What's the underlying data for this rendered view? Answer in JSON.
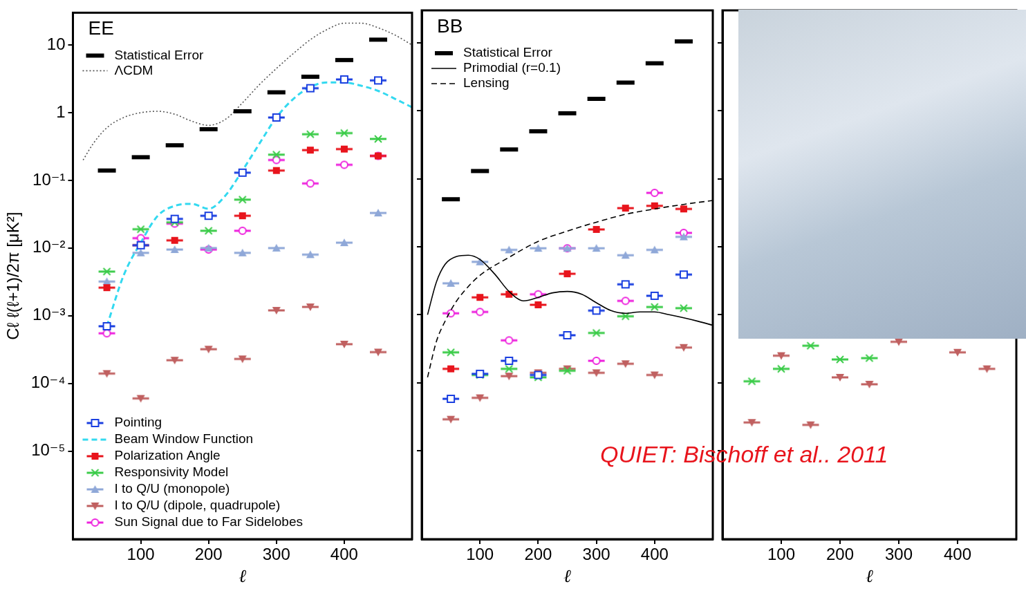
{
  "chart_data": [
    {
      "type": "scatter",
      "title": "EE",
      "x_label": "ℓ",
      "y_label": "Cℓ ℓ(ℓ+1)/2π [μK²]",
      "log": "y",
      "grid": false,
      "legend": "left",
      "xlim": [
        0,
        500
      ],
      "xticks": [
        100,
        200,
        300,
        400
      ],
      "ylim": [
        5e-07,
        30
      ],
      "yticks": [
        {
          "value": 1e-05,
          "label": "10⁻⁵"
        },
        {
          "value": 0.0001,
          "label": "10⁻⁴"
        },
        {
          "value": 0.001,
          "label": "10⁻³"
        },
        {
          "value": 0.01,
          "label": "10⁻²"
        },
        {
          "value": 0.1,
          "label": "10⁻¹"
        },
        1,
        10
      ],
      "series": [
        {
          "name": "Statistical Error",
          "type": "scatter",
          "marker": "bar",
          "color": "#000000",
          "x": [
            50,
            100,
            150,
            200,
            250,
            300,
            350,
            400,
            450
          ],
          "values": [
            0.14,
            0.22,
            0.33,
            0.57,
            1.05,
            2.0,
            3.4,
            6.0,
            12
          ]
        },
        {
          "name": "ΛCDM",
          "type": "line",
          "line_style": "dotted",
          "color": "#555555",
          "x": [
            15,
            30,
            50,
            75,
            100,
            125,
            150,
            175,
            200,
            225,
            250,
            275,
            300,
            325,
            350,
            375,
            400,
            425,
            450,
            475,
            500
          ],
          "values": [
            0.2,
            0.35,
            0.6,
            0.85,
            1.0,
            1.05,
            0.95,
            0.75,
            0.65,
            0.8,
            1.4,
            2.6,
            4.5,
            7.5,
            12,
            17,
            21,
            21,
            18,
            14,
            10
          ]
        },
        {
          "name": "Pointing",
          "type": "scatter",
          "marker": "square_open",
          "color": "#1a3fe0",
          "x": [
            50,
            100,
            150,
            200,
            250,
            300,
            350,
            400,
            450
          ],
          "values": [
            0.0007,
            0.011,
            0.027,
            0.03,
            0.13,
            0.85,
            2.3,
            3.1,
            3.0
          ]
        },
        {
          "name": "Beam Window Function",
          "type": "line",
          "line_style": "dashed",
          "color": "#33d9f0",
          "x": [
            50,
            75,
            100,
            125,
            150,
            175,
            200,
            225,
            250,
            275,
            300,
            325,
            350,
            375,
            400,
            425,
            450,
            475,
            500
          ],
          "values": [
            0.0007,
            0.004,
            0.012,
            0.03,
            0.042,
            0.045,
            0.038,
            0.06,
            0.14,
            0.35,
            0.85,
            1.6,
            2.4,
            2.8,
            2.8,
            2.5,
            2.1,
            1.6,
            1.2
          ]
        },
        {
          "name": "Polarization Angle",
          "type": "scatter",
          "marker": "square",
          "color": "#e8141c",
          "x": [
            50,
            100,
            150,
            200,
            250,
            300,
            350,
            400,
            450
          ],
          "values": [
            0.0026,
            0.011,
            0.013,
            null,
            0.03,
            0.14,
            0.28,
            0.29,
            0.23
          ]
        },
        {
          "name": "Responsivity Model",
          "type": "scatter",
          "marker": "x",
          "color": "#3ccc4a",
          "x": [
            50,
            100,
            150,
            200,
            250,
            300,
            350,
            400,
            450
          ],
          "values": [
            0.0045,
            0.019,
            0.024,
            0.018,
            0.052,
            0.24,
            0.48,
            0.5,
            0.41
          ]
        },
        {
          "name": "I to Q/U (monopole)",
          "type": "scatter",
          "marker": "triangle",
          "color": "#8fa8d8",
          "x": [
            50,
            100,
            150,
            200,
            250,
            300,
            350,
            400,
            450
          ],
          "values": [
            0.0032,
            0.0085,
            0.0095,
            0.01,
            0.0085,
            0.01,
            0.008,
            0.012,
            0.033
          ]
        },
        {
          "name": "I to Q/U (dipole, quadrupole)",
          "type": "scatter",
          "marker": "triangle_down",
          "color": "#c06060",
          "x": [
            50,
            100,
            150,
            200,
            250,
            300,
            350,
            400,
            450
          ],
          "values": [
            0.00014,
            6e-05,
            0.00022,
            0.00032,
            0.00023,
            0.0012,
            0.00135,
            0.00038,
            0.00029
          ]
        },
        {
          "name": "Sun Signal due to Far Sidelobes",
          "type": "scatter",
          "marker": "circle_open",
          "color": "#ee22dd",
          "x": [
            50,
            100,
            150,
            200,
            250,
            300,
            350,
            400,
            450
          ],
          "values": [
            0.00055,
            0.014,
            0.023,
            0.0095,
            0.018,
            0.2,
            0.09,
            0.17,
            0.23
          ]
        }
      ]
    },
    {
      "type": "scatter",
      "title": "BB",
      "x_label": "ℓ",
      "log": "y",
      "grid": false,
      "legend": "upper left",
      "tick_labels": "x",
      "annotation": "QUIET: Bischoff et al.. 2011",
      "xlim": [
        0,
        500
      ],
      "xticks": [
        100,
        200,
        300,
        400
      ],
      "ylim": [
        5e-07,
        30
      ],
      "yticks": [
        1e-05,
        0.0001,
        0.001,
        0.01,
        0.1,
        1,
        10
      ],
      "series": [
        {
          "name": "Statistical Error",
          "type": "scatter",
          "marker": "bar",
          "color": "#000000",
          "x": [
            50,
            100,
            150,
            200,
            250,
            300,
            350,
            400,
            450
          ],
          "values": [
            0.05,
            0.13,
            0.27,
            0.5,
            0.92,
            1.5,
            2.6,
            5.0,
            10.5
          ]
        },
        {
          "name": "Primodial (r=0.1)",
          "type": "line",
          "line_style": "solid",
          "color": "#000000",
          "x": [
            10,
            25,
            40,
            60,
            80,
            100,
            125,
            150,
            175,
            200,
            225,
            250,
            275,
            300,
            325,
            350,
            375,
            400,
            425,
            450,
            475,
            500
          ],
          "values": [
            0.001,
            0.003,
            0.0055,
            0.0072,
            0.0075,
            0.0065,
            0.004,
            0.0022,
            0.0016,
            0.0018,
            0.0021,
            0.0022,
            0.002,
            0.0015,
            0.00115,
            0.00105,
            0.0011,
            0.0011,
            0.001,
            0.0009,
            0.0008,
            0.0007
          ]
        },
        {
          "name": "Lensing",
          "type": "line",
          "line_style": "dashed",
          "color": "#000000",
          "x": [
            10,
            25,
            40,
            60,
            80,
            100,
            150,
            200,
            250,
            300,
            350,
            400,
            450,
            500
          ],
          "values": [
            0.00012,
            0.0004,
            0.0008,
            0.0016,
            0.0026,
            0.0038,
            0.007,
            0.012,
            0.017,
            0.023,
            0.03,
            0.036,
            0.042,
            0.048
          ]
        },
        {
          "name": "Pointing",
          "type": "scatter",
          "marker": "square_open",
          "color": "#1a3fe0",
          "x": [
            50,
            100,
            150,
            200,
            250,
            300,
            350,
            400,
            450
          ],
          "values": [
            5.8e-05,
            0.000135,
            0.00021,
            0.00013,
            0.0005,
            0.00115,
            0.0028,
            0.0019,
            0.0039
          ]
        },
        {
          "name": "Polarization Angle",
          "type": "scatter",
          "marker": "square",
          "color": "#e8141c",
          "x": [
            50,
            100,
            150,
            200,
            250,
            300,
            350,
            400,
            450
          ],
          "values": [
            0.00016,
            0.0018,
            0.002,
            0.0014,
            0.004,
            0.018,
            0.037,
            0.04,
            0.036
          ]
        },
        {
          "name": "Responsivity Model",
          "type": "scatter",
          "marker": "x",
          "color": "#3ccc4a",
          "x": [
            50,
            100,
            150,
            200,
            250,
            300,
            350,
            400,
            450
          ],
          "values": [
            0.00028,
            0.00013,
            0.00016,
            0.00012,
            0.00015,
            0.00054,
            0.00095,
            0.0013,
            0.00125
          ]
        },
        {
          "name": "I to Q/U (monopole)",
          "type": "scatter",
          "marker": "triangle",
          "color": "#8fa8d8",
          "x": [
            50,
            100,
            150,
            200,
            250,
            300,
            350,
            400,
            450
          ],
          "values": [
            0.0029,
            0.006,
            0.009,
            0.0095,
            0.0095,
            0.0095,
            0.0075,
            0.009,
            0.014
          ]
        },
        {
          "name": "I to Q/U (dipole, quadrupole)",
          "type": "scatter",
          "marker": "triangle_down",
          "color": "#c06060",
          "x": [
            50,
            100,
            150,
            200,
            250,
            300,
            350,
            400,
            450
          ],
          "values": [
            2.9e-05,
            6e-05,
            0.000125,
            0.00014,
            0.00016,
            0.00014,
            0.00019,
            0.00013,
            0.00033
          ]
        },
        {
          "name": "Sun Signal due to Far Sidelobes",
          "type": "scatter",
          "marker": "circle_open",
          "color": "#ee22dd",
          "x": [
            50,
            100,
            150,
            200,
            250,
            300,
            350,
            400,
            450
          ],
          "values": [
            0.00105,
            0.0011,
            0.00042,
            0.002,
            0.0095,
            0.00021,
            0.0016,
            0.062,
            0.016
          ]
        }
      ]
    },
    {
      "type": "scatter",
      "x_label": "ℓ",
      "log": "y",
      "grid": false,
      "tick_labels": "x",
      "xlim": [
        0,
        500
      ],
      "xticks": [
        100,
        200,
        300,
        400
      ],
      "ylim": [
        5e-07,
        30
      ],
      "yticks": [
        1e-05,
        0.0001,
        0.001,
        0.01,
        0.1,
        1,
        10
      ],
      "series": [
        {
          "name": "Responsivity Model",
          "type": "scatter",
          "marker": "x",
          "color": "#3ccc4a",
          "x": [
            50,
            100,
            150,
            200,
            250,
            300,
            350,
            400,
            450
          ],
          "values": [
            0.000105,
            0.00016,
            0.00035,
            0.00022,
            0.00023,
            null,
            null,
            null,
            null
          ]
        },
        {
          "name": "I to Q/U (dipole, quadrupole)",
          "type": "scatter",
          "marker": "triangle_down",
          "color": "#c06060",
          "x": [
            50,
            100,
            150,
            200,
            250,
            300,
            350,
            400,
            450
          ],
          "values": [
            2.6e-05,
            0.00025,
            2.4e-05,
            0.00012,
            9.5e-05,
            0.0004,
            null,
            0.00028,
            0.00016
          ]
        }
      ]
    }
  ]
}
